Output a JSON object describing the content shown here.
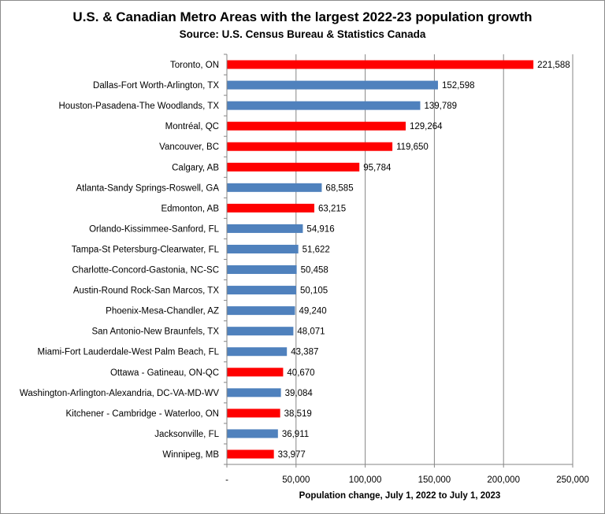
{
  "chart_data": {
    "type": "bar",
    "orientation": "horizontal",
    "title": "U.S. & Canadian Metro Areas with the largest 2022-23 population growth",
    "subtitle": "Source: U.S. Census Bureau & Statistics Canada",
    "xlabel": "Population change, July 1, 2022 to July 1, 2023",
    "ylabel": "",
    "xlim": [
      0,
      250000
    ],
    "xticks": [
      0,
      50000,
      100000,
      150000,
      200000,
      250000
    ],
    "xtick_labels": [
      "-",
      "50,000",
      "100,000",
      "150,000",
      "200,000",
      "250,000"
    ],
    "grid": "vertical",
    "legend": "none",
    "colors": {
      "canada": "#ff0000",
      "us": "#4f81bd"
    },
    "categories": [
      "Toronto, ON",
      "Dallas-Fort Worth-Arlington, TX",
      "Houston-Pasadena-The Woodlands, TX",
      "Montréal, QC",
      "Vancouver, BC",
      "Calgary, AB",
      "Atlanta-Sandy Springs-Roswell, GA",
      "Edmonton, AB",
      "Orlando-Kissimmee-Sanford, FL",
      "Tampa-St Petersburg-Clearwater, FL",
      "Charlotte-Concord-Gastonia, NC-SC",
      "Austin-Round Rock-San Marcos, TX",
      "Phoenix-Mesa-Chandler, AZ",
      "San Antonio-New Braunfels, TX",
      "Miami-Fort Lauderdale-West Palm Beach, FL",
      "Ottawa - Gatineau, ON-QC",
      "Washington-Arlington-Alexandria, DC-VA-MD-WV",
      "Kitchener - Cambridge - Waterloo, ON",
      "Jacksonville, FL",
      "Winnipeg, MB"
    ],
    "values": [
      221588,
      152598,
      139789,
      129264,
      119650,
      95784,
      68585,
      63215,
      54916,
      51622,
      50458,
      50105,
      49240,
      48071,
      43387,
      40670,
      39084,
      38519,
      36911,
      33977
    ],
    "value_labels": [
      "221,588",
      "152,598",
      "139,789",
      "129,264",
      "119,650",
      "95,784",
      "68,585",
      "63,215",
      "54,916",
      "51,622",
      "50,458",
      "50,105",
      "49,240",
      "48,071",
      "43,387",
      "40,670",
      "39,084",
      "38,519",
      "36,911",
      "33,977"
    ],
    "country": [
      "canada",
      "us",
      "us",
      "canada",
      "canada",
      "canada",
      "us",
      "canada",
      "us",
      "us",
      "us",
      "us",
      "us",
      "us",
      "us",
      "canada",
      "us",
      "canada",
      "us",
      "canada"
    ]
  }
}
